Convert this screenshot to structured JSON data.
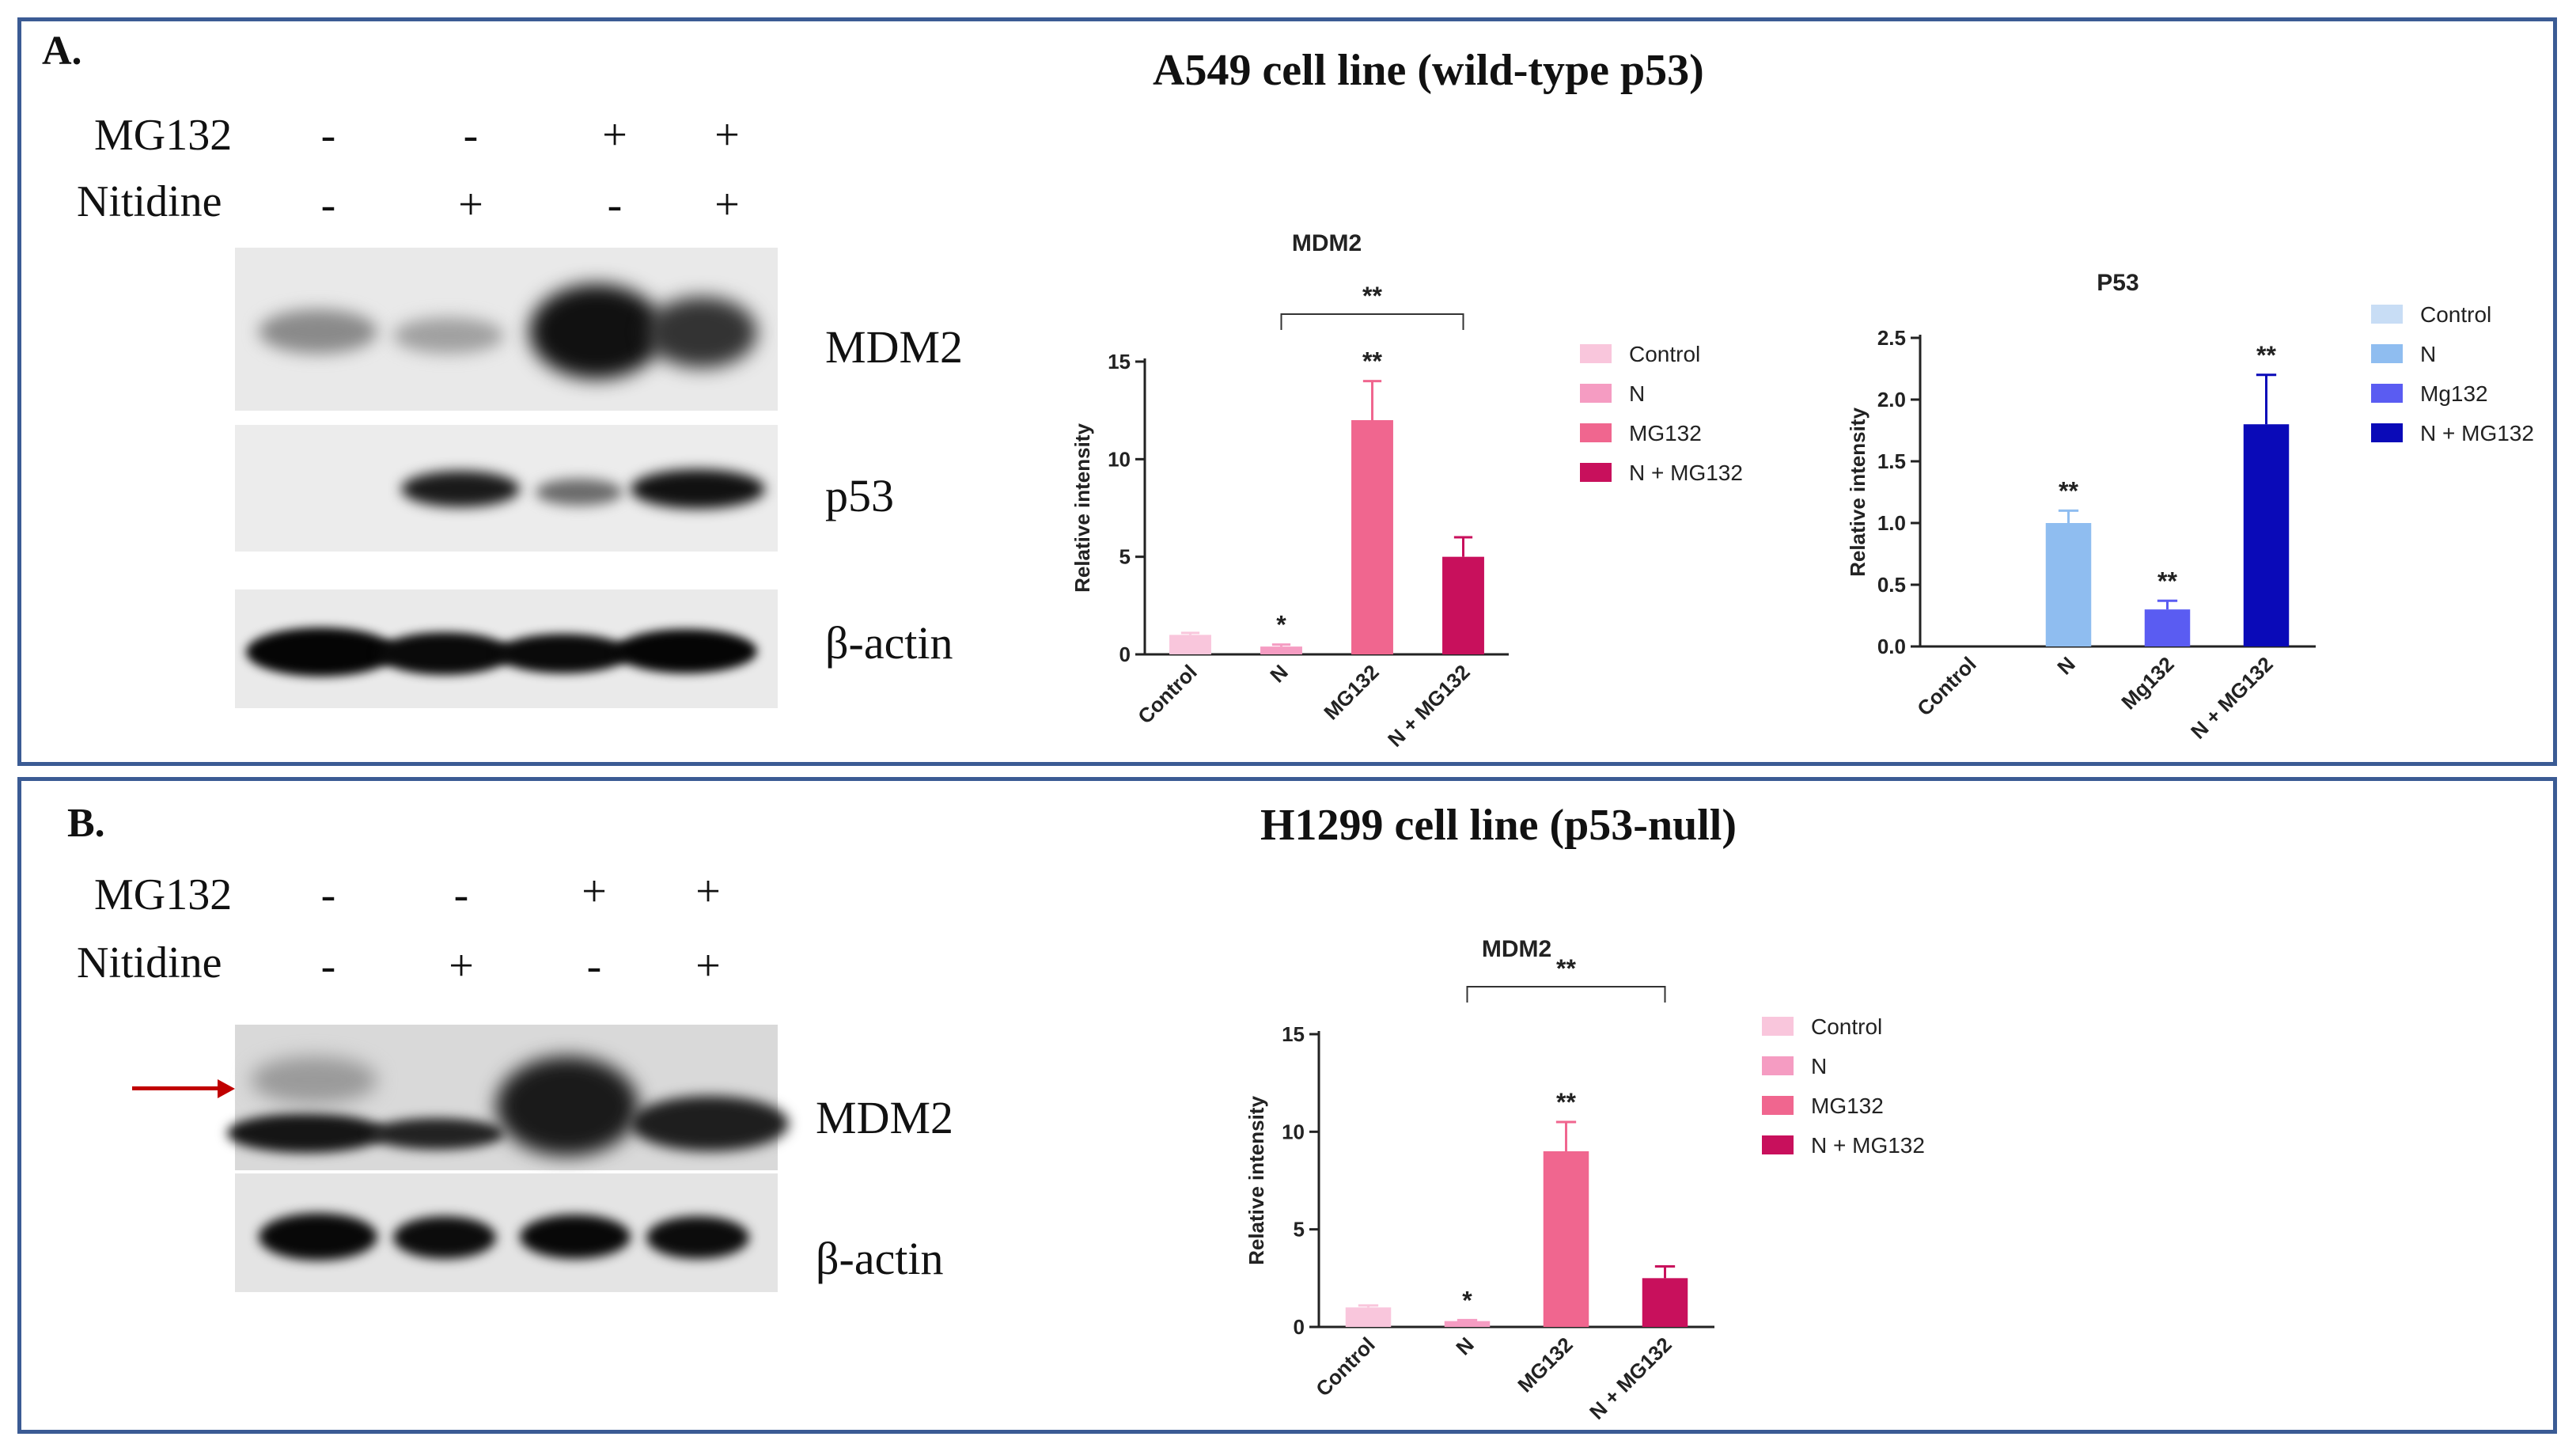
{
  "panel_a": {
    "label": "A.",
    "title": "A549 cell line (wild-type p53)",
    "treatments": {
      "row1_label": "MG132",
      "row1_symbols": [
        "-",
        "-",
        "+",
        "+"
      ],
      "row2_label": "Nitidine",
      "row2_symbols": [
        "-",
        "+",
        "-",
        "+"
      ]
    },
    "blot_labels": [
      "MDM2",
      "p53",
      "β-actin"
    ]
  },
  "panel_b": {
    "label": "B.",
    "title": "H1299 cell line (p53-null)",
    "treatments": {
      "row1_label": "MG132",
      "row1_symbols": [
        "-",
        "-",
        "+",
        "+"
      ],
      "row2_label": "Nitidine",
      "row2_symbols": [
        "-",
        "+",
        "-",
        "+"
      ]
    },
    "blot_labels": [
      "MDM2",
      "β-actin"
    ]
  },
  "chart_data": [
    {
      "type": "bar",
      "title": "MDM2",
      "ylabel": "Relative intensity",
      "xlabel": "",
      "categories": [
        "Control",
        "N",
        "MG132",
        "N + MG132"
      ],
      "values": [
        1.0,
        0.4,
        12.0,
        5.0
      ],
      "errors": [
        0.1,
        0.1,
        2.0,
        1.0
      ],
      "annotations": [
        "",
        "*",
        "**",
        ""
      ],
      "bracket": {
        "from": 1,
        "to": 3,
        "label": "**"
      },
      "ylim": [
        0,
        15
      ],
      "yticks": [
        0,
        5,
        10,
        15
      ],
      "colors": [
        "#f9c6dc",
        "#f59cc2",
        "#f0668f",
        "#c8105c"
      ],
      "legend": [
        "Control",
        "N",
        "MG132",
        "N + MG132"
      ],
      "legend_position": "right"
    },
    {
      "type": "bar",
      "title": "P53",
      "ylabel": "Relative intensity",
      "xlabel": "",
      "categories": [
        "Control",
        "N",
        "Mg132",
        "N + MG132"
      ],
      "values": [
        0.0,
        1.0,
        0.3,
        1.8
      ],
      "errors": [
        0.0,
        0.1,
        0.07,
        0.4
      ],
      "annotations": [
        "",
        "**",
        "**",
        "**"
      ],
      "ylim": [
        0,
        2.5
      ],
      "yticks": [
        "0.0",
        "0.5",
        "1.0",
        "1.5",
        "2.0",
        "2.5"
      ],
      "colors": [
        "#c8ddf5",
        "#8fbdf0",
        "#5a5cf2",
        "#0a0ab8"
      ],
      "legend": [
        "Control",
        "N",
        "Mg132",
        "N + MG132"
      ],
      "legend_position": "right"
    },
    {
      "type": "bar",
      "title": "MDM2",
      "ylabel": "Relative intensity",
      "xlabel": "",
      "categories": [
        "Control",
        "N",
        "MG132",
        "N + MG132"
      ],
      "values": [
        1.0,
        0.3,
        9.0,
        2.5
      ],
      "errors": [
        0.1,
        0.05,
        1.5,
        0.6
      ],
      "annotations": [
        "",
        "*",
        "**",
        ""
      ],
      "bracket": {
        "from": 1,
        "to": 3,
        "label": "**"
      },
      "ylim": [
        0,
        15
      ],
      "yticks": [
        0,
        5,
        10,
        15
      ],
      "colors": [
        "#f9c6dc",
        "#f59cc2",
        "#f0668f",
        "#c8105c"
      ],
      "legend": [
        "Control",
        "N",
        "MG132",
        "N + MG132"
      ],
      "legend_position": "right"
    }
  ]
}
